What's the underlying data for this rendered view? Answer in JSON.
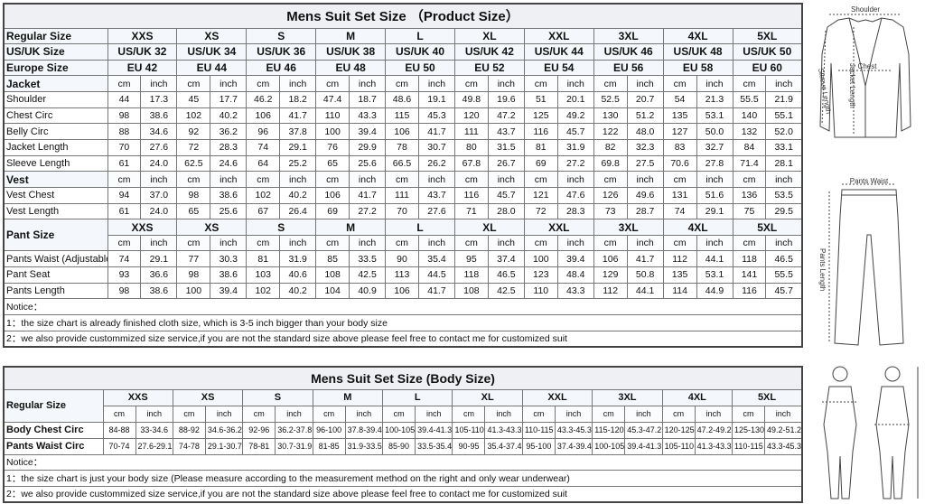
{
  "product_table": {
    "title": "Mens Suit Set Size （Product Size）",
    "size_label": "Regular Size",
    "sizes": [
      "XXS",
      "XS",
      "S",
      "M",
      "L",
      "XL",
      "XXL",
      "3XL",
      "4XL",
      "5XL"
    ],
    "us_label": "US/UK Size",
    "us": [
      "US/UK 32",
      "US/UK 34",
      "US/UK 36",
      "US/UK 38",
      "US/UK 40",
      "US/UK 42",
      "US/UK 44",
      "US/UK 46",
      "US/UK 48",
      "US/UK 50"
    ],
    "eu_label": "Europe Size",
    "eu": [
      "EU 42",
      "EU 44",
      "EU 46",
      "EU 48",
      "EU 50",
      "EU 52",
      "EU 54",
      "EU 56",
      "EU 58",
      "EU 60"
    ],
    "unit_cm": "cm",
    "unit_inch": "inch",
    "sections": [
      {
        "name": "Jacket",
        "size_row": false,
        "rows": [
          {
            "label": "Shoulder",
            "values": [
              "44",
              "17.3",
              "45",
              "17.7",
              "46.2",
              "18.2",
              "47.4",
              "18.7",
              "48.6",
              "19.1",
              "49.8",
              "19.6",
              "51",
              "20.1",
              "52.5",
              "20.7",
              "54",
              "21.3",
              "55.5",
              "21.9"
            ]
          },
          {
            "label": "Chest Circ",
            "values": [
              "98",
              "38.6",
              "102",
              "40.2",
              "106",
              "41.7",
              "110",
              "43.3",
              "115",
              "45.3",
              "120",
              "47.2",
              "125",
              "49.2",
              "130",
              "51.2",
              "135",
              "53.1",
              "140",
              "55.1"
            ]
          },
          {
            "label": "Belly Circ",
            "values": [
              "88",
              "34.6",
              "92",
              "36.2",
              "96",
              "37.8",
              "100",
              "39.4",
              "106",
              "41.7",
              "111",
              "43.7",
              "116",
              "45.7",
              "122",
              "48.0",
              "127",
              "50.0",
              "132",
              "52.0"
            ]
          },
          {
            "label": "Jacket Length",
            "values": [
              "70",
              "27.6",
              "72",
              "28.3",
              "74",
              "29.1",
              "76",
              "29.9",
              "78",
              "30.7",
              "80",
              "31.5",
              "81",
              "31.9",
              "82",
              "32.3",
              "83",
              "32.7",
              "84",
              "33.1"
            ]
          },
          {
            "label": "Sleeve Length",
            "values": [
              "61",
              "24.0",
              "62.5",
              "24.6",
              "64",
              "25.2",
              "65",
              "25.6",
              "66.5",
              "26.2",
              "67.8",
              "26.7",
              "69",
              "27.2",
              "69.8",
              "27.5",
              "70.6",
              "27.8",
              "71.4",
              "28.1"
            ]
          }
        ]
      },
      {
        "name": "Vest",
        "size_row": false,
        "rows": [
          {
            "label": "Vest Chest",
            "values": [
              "94",
              "37.0",
              "98",
              "38.6",
              "102",
              "40.2",
              "106",
              "41.7",
              "111",
              "43.7",
              "116",
              "45.7",
              "121",
              "47.6",
              "126",
              "49.6",
              "131",
              "51.6",
              "136",
              "53.5"
            ]
          },
          {
            "label": "Vest Length",
            "values": [
              "61",
              "24.0",
              "65",
              "25.6",
              "67",
              "26.4",
              "69",
              "27.2",
              "70",
              "27.6",
              "71",
              "28.0",
              "72",
              "28.3",
              "73",
              "28.7",
              "74",
              "29.1",
              "75",
              "29.5"
            ]
          }
        ]
      },
      {
        "name": "Pant Size",
        "size_row": true,
        "rows": [
          {
            "label": "Pants Waist (Adjustable",
            "values": [
              "74",
              "29.1",
              "77",
              "30.3",
              "81",
              "31.9",
              "85",
              "33.5",
              "90",
              "35.4",
              "95",
              "37.4",
              "100",
              "39.4",
              "106",
              "41.7",
              "112",
              "44.1",
              "118",
              "46.5"
            ]
          },
          {
            "label": "Pant Seat",
            "values": [
              "93",
              "36.6",
              "98",
              "38.6",
              "103",
              "40.6",
              "108",
              "42.5",
              "113",
              "44.5",
              "118",
              "46.5",
              "123",
              "48.4",
              "129",
              "50.8",
              "135",
              "53.1",
              "141",
              "55.5"
            ]
          },
          {
            "label": "Pants Length",
            "values": [
              "98",
              "38.6",
              "100",
              "39.4",
              "102",
              "40.2",
              "104",
              "40.9",
              "106",
              "41.7",
              "108",
              "42.5",
              "110",
              "43.3",
              "112",
              "44.1",
              "114",
              "44.9",
              "116",
              "45.7"
            ]
          }
        ]
      }
    ],
    "notice": "Notice：",
    "notes": [
      "1：the size chart is already finished cloth size, which is 3-5 inch bigger than your body size",
      "2：we also provide custommized size service,if you are not the standard size above please feel free to contact me for customized suit"
    ]
  },
  "body_table": {
    "title": "Mens Suit Set Size  (Body Size)",
    "size_label": "Regular Size",
    "sizes": [
      "XXS",
      "XS",
      "S",
      "M",
      "L",
      "XL",
      "XXL",
      "3XL",
      "4XL",
      "5XL"
    ],
    "unit_cm": "cm",
    "unit_inch": "inch",
    "rows": [
      {
        "label": "Body Chest Circ",
        "values": [
          "84-88",
          "33-34.6",
          "88-92",
          "34.6-36.2",
          "92-96",
          "36.2-37.8",
          "96-100",
          "37.8-39.4",
          "100-105",
          "39.4-41.3",
          "105-110",
          "41.3-43.3",
          "110-115",
          "43.3-45.3",
          "115-120",
          "45.3-47.2",
          "120-125",
          "47.2-49.2",
          "125-130",
          "49.2-51.2"
        ]
      },
      {
        "label": "Pants Waist Circ",
        "values": [
          "70-74",
          "27.6-29.1",
          "74-78",
          "29.1-30.7",
          "78-81",
          "30.7-31.9",
          "81-85",
          "31.9-33.5",
          "85-90",
          "33.5-35.4",
          "90-95",
          "35.4-37.4",
          "95-100",
          "37.4-39.4",
          "100-105",
          "39.4-41.3",
          "105-110",
          "41.3-43.3",
          "110-115",
          "43.3-45.3"
        ]
      }
    ],
    "notice": "Notice：",
    "notes": [
      "1：the size chart is just your body size  (Please measure according to the measurement method on the right and only wear underwear)",
      "2：we also provide custommized size service,if you are not the standard size above please feel free to contact me for customized suit"
    ]
  },
  "illustrations": {
    "jacket_labels": [
      "Shoulder",
      "Chest",
      "Jacket Length",
      "Sleeve Length"
    ],
    "pants_labels": [
      "Pants Waist",
      "Pants Length"
    ]
  }
}
